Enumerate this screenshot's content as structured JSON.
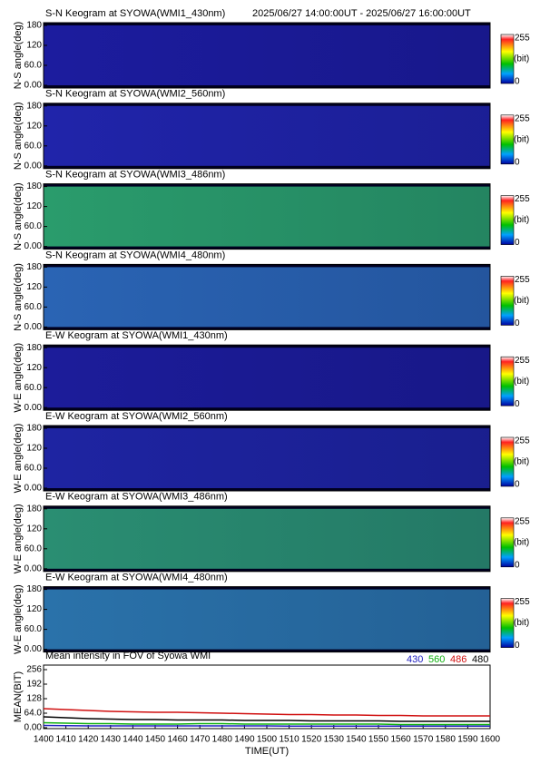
{
  "keograms": [
    {
      "title": "S-N Keogram at SYOWA(WMI1_430nm)",
      "ylabel": "N-S angle(deg)",
      "fill": "#1c1c9e"
    },
    {
      "title": "S-N Keogram at SYOWA(WMI2_560nm)",
      "ylabel": "N-S angle(deg)",
      "fill": "#2024aa"
    },
    {
      "title": "S-N Keogram at SYOWA(WMI3_486nm)",
      "ylabel": "N-S angle(deg)",
      "fill": "#2a9c6c"
    },
    {
      "title": "S-N Keogram at SYOWA(WMI4_480nm)",
      "ylabel": "N-S angle(deg)",
      "fill": "#2a64b4"
    },
    {
      "title": "E-W Keogram at SYOWA(WMI1_430nm)",
      "ylabel": "W-E angle(deg)",
      "fill": "#1c1c9a"
    },
    {
      "title": "E-W Keogram at SYOWA(WMI2_560nm)",
      "ylabel": "W-E angle(deg)",
      "fill": "#1e24a2"
    },
    {
      "title": "E-W Keogram at SYOWA(WMI3_486nm)",
      "ylabel": "W-E angle(deg)",
      "fill": "#2a8e72"
    },
    {
      "title": "E-W Keogram at SYOWA(WMI4_480nm)",
      "ylabel": "W-E angle(deg)",
      "fill": "#2a72aa"
    }
  ],
  "time_range": "2025/06/27 14:00:00UT - 2025/06/27 16:00:00UT",
  "keogram_ylim": [
    0,
    180
  ],
  "keogram_yticks": [
    180,
    120,
    {
      "value": 60,
      "label": "60.0"
    },
    {
      "value": 0,
      "label": "0.00"
    }
  ],
  "colorbar": {
    "max": 255,
    "unit": "(bit)",
    "min": 0
  },
  "chart_data": {
    "type": "line",
    "title": "Mean intensity in FOV of Syowa WMI",
    "xlabel": "TIME(UT)",
    "ylabel": "MEAN(BIT)",
    "x": [
      1400,
      1410,
      1420,
      1430,
      1440,
      1450,
      1460,
      1470,
      1480,
      1490,
      1500,
      1510,
      1520,
      1530,
      1540,
      1550,
      1560,
      1570,
      1580,
      1590,
      1600
    ],
    "series": [
      {
        "name": "430",
        "color": "#2020c0",
        "values": [
          10,
          9,
          8,
          8,
          8,
          8,
          8,
          8,
          8,
          8,
          8,
          7,
          7,
          7,
          7,
          7,
          7,
          7,
          7,
          7,
          7
        ]
      },
      {
        "name": "560",
        "color": "#10b010",
        "values": [
          22,
          20,
          18,
          18,
          16,
          16,
          16,
          18,
          18,
          16,
          16,
          16,
          16,
          16,
          16,
          16,
          14,
          14,
          14,
          14,
          14
        ]
      },
      {
        "name": "486",
        "color": "#d01010",
        "values": [
          84,
          80,
          76,
          72,
          70,
          68,
          68,
          66,
          64,
          62,
          60,
          58,
          58,
          56,
          56,
          54,
          54,
          52,
          52,
          52,
          52
        ]
      },
      {
        "name": "480",
        "color": "#000000",
        "values": [
          48,
          44,
          40,
          38,
          36,
          36,
          34,
          34,
          34,
          32,
          32,
          32,
          30,
          30,
          30,
          30,
          28,
          28,
          28,
          28,
          28
        ]
      }
    ],
    "xlim": [
      1400,
      1600
    ],
    "xticks": [
      1400,
      1410,
      1420,
      1430,
      1440,
      1450,
      1460,
      1470,
      1480,
      1490,
      1500,
      1510,
      1520,
      1530,
      1540,
      1550,
      1560,
      1570,
      1580,
      1590,
      1600
    ],
    "ylim": [
      0,
      256
    ],
    "yticks": [
      256,
      192,
      128,
      {
        "value": 64,
        "label": "64.0"
      },
      {
        "value": 0,
        "label": "0.00"
      }
    ]
  }
}
